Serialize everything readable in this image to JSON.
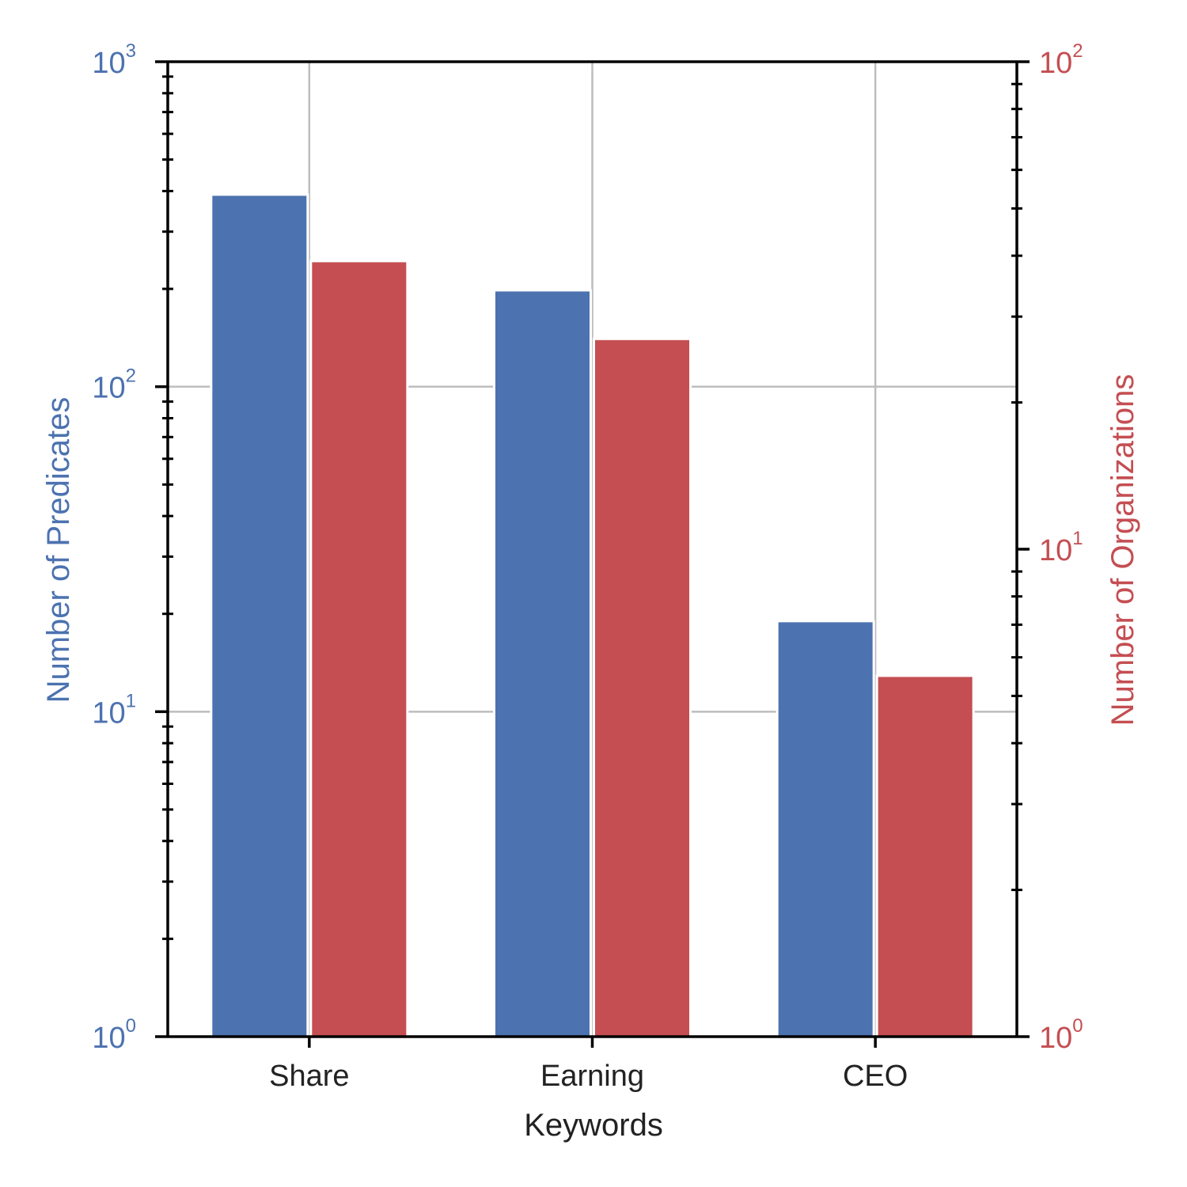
{
  "chart_data": {
    "type": "bar",
    "categories": [
      "Share",
      "Earning",
      "CEO"
    ],
    "xlabel": "Keywords",
    "series": [
      {
        "name": "Number of Predicates",
        "axis": "left",
        "color": "#4c72b0",
        "values": [
          390,
          198,
          19
        ]
      },
      {
        "name": "Number of Organizations",
        "axis": "right",
        "color": "#c44e52",
        "values": [
          39,
          27,
          5.5
        ]
      }
    ],
    "y_left": {
      "label": "Number of Predicates",
      "scale": "log",
      "ylim": [
        1,
        1000
      ],
      "ticks": [
        {
          "base": "10",
          "exp": "0"
        },
        {
          "base": "10",
          "exp": "1"
        },
        {
          "base": "10",
          "exp": "2"
        },
        {
          "base": "10",
          "exp": "3"
        }
      ],
      "color": "#4c72b0"
    },
    "y_right": {
      "label": "Number of Organizations",
      "scale": "log",
      "ylim": [
        1,
        100
      ],
      "ticks": [
        {
          "base": "10",
          "exp": "0"
        },
        {
          "base": "10",
          "exp": "1"
        },
        {
          "base": "10",
          "exp": "2"
        }
      ],
      "color": "#c44e52"
    },
    "grid": true
  }
}
